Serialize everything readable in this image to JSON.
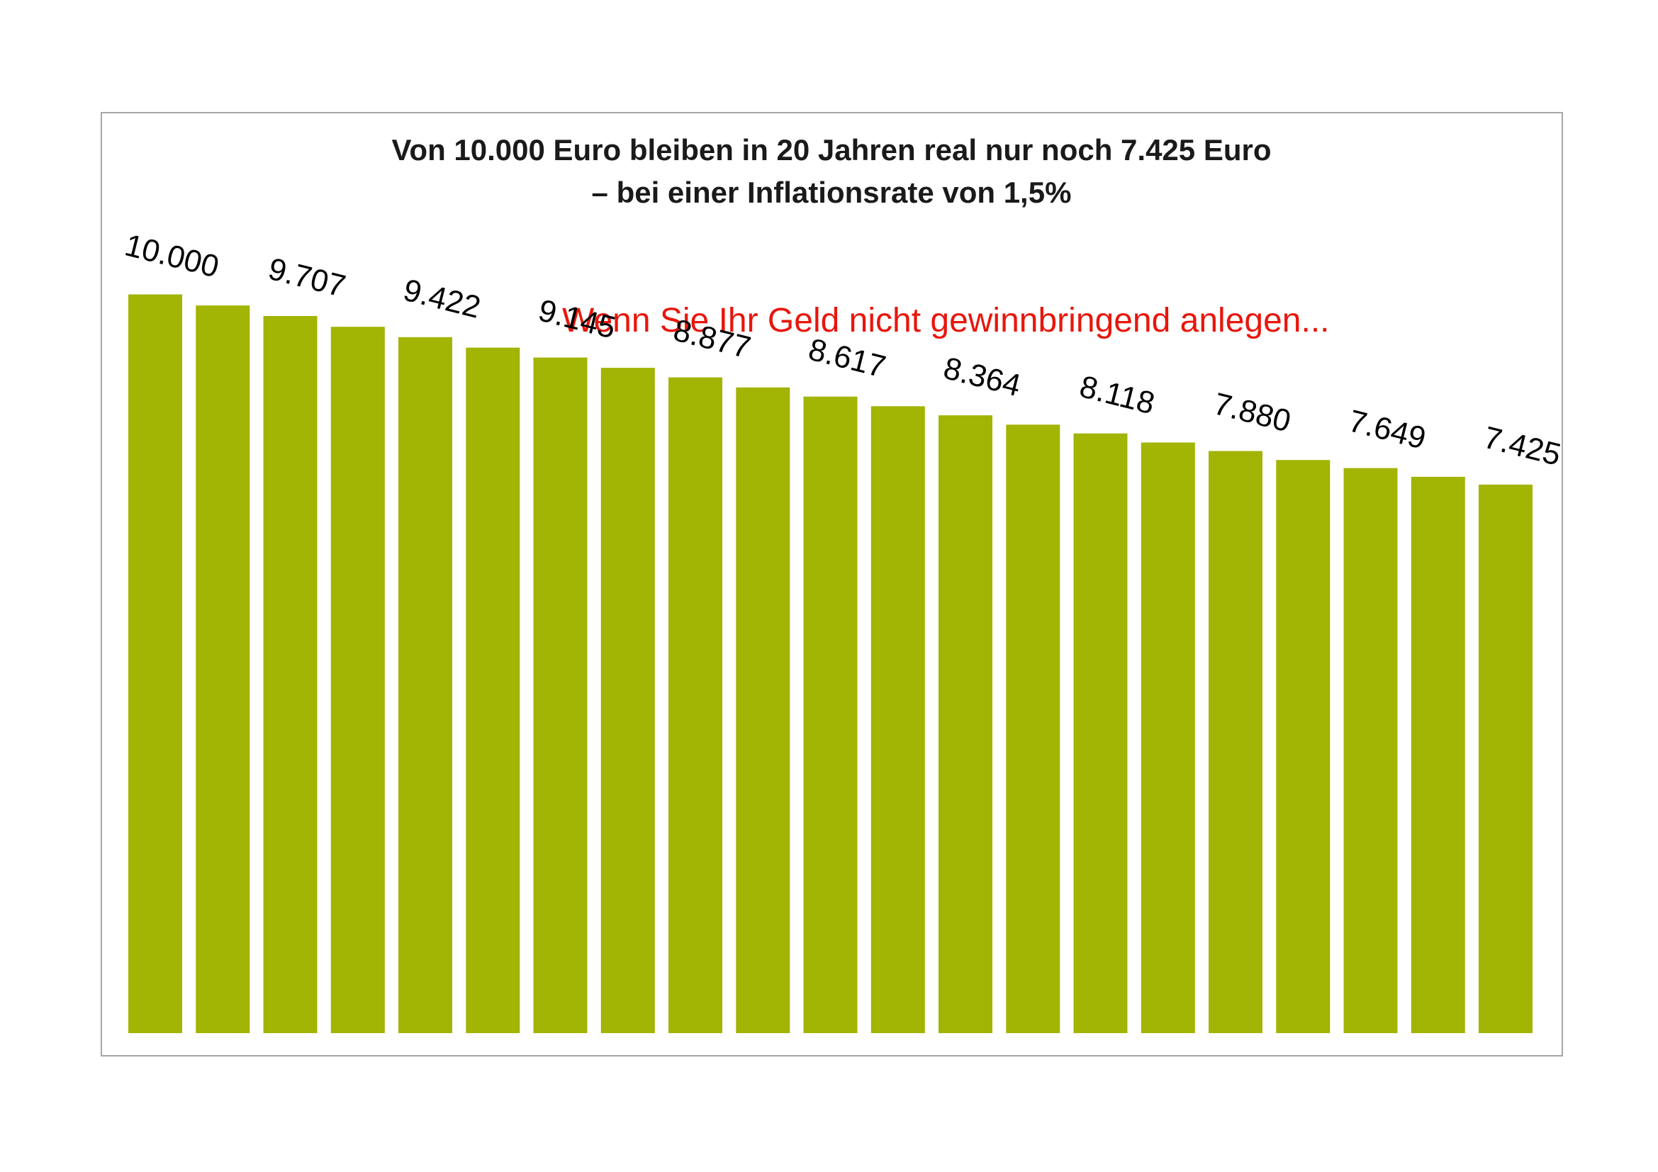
{
  "chart_data": {
    "type": "bar",
    "title_line1": "Von 10.000 Euro bleiben in 20 Jahren real nur noch 7.425 Euro",
    "title_line2": "– bei einer Inflationsrate von 1,5%",
    "annotation": "Wenn Sie Ihr Geld nicht gewinnbringend anlegen...",
    "xlabel": "",
    "ylabel": "",
    "ylim": [
      0,
      10000
    ],
    "grid": false,
    "legend": "none",
    "values": [
      10000,
      9850,
      9707,
      9562,
      9422,
      9280,
      9145,
      9006,
      8877,
      8741,
      8617,
      8486,
      8364,
      8237,
      8118,
      7995,
      7880,
      7758,
      7649,
      7531,
      7425
    ],
    "labels": [
      "10.000",
      "",
      "9.707",
      "",
      "9.422",
      "",
      "9.145",
      "",
      "8.877",
      "",
      "8.617",
      "",
      "8.364",
      "",
      "8.118",
      "",
      "7.880",
      "",
      "7.649",
      "",
      "7.425"
    ],
    "colors": {
      "bar": "#a2b404",
      "annotation": "#e8160c",
      "frame": "#a6a6a6"
    }
  }
}
